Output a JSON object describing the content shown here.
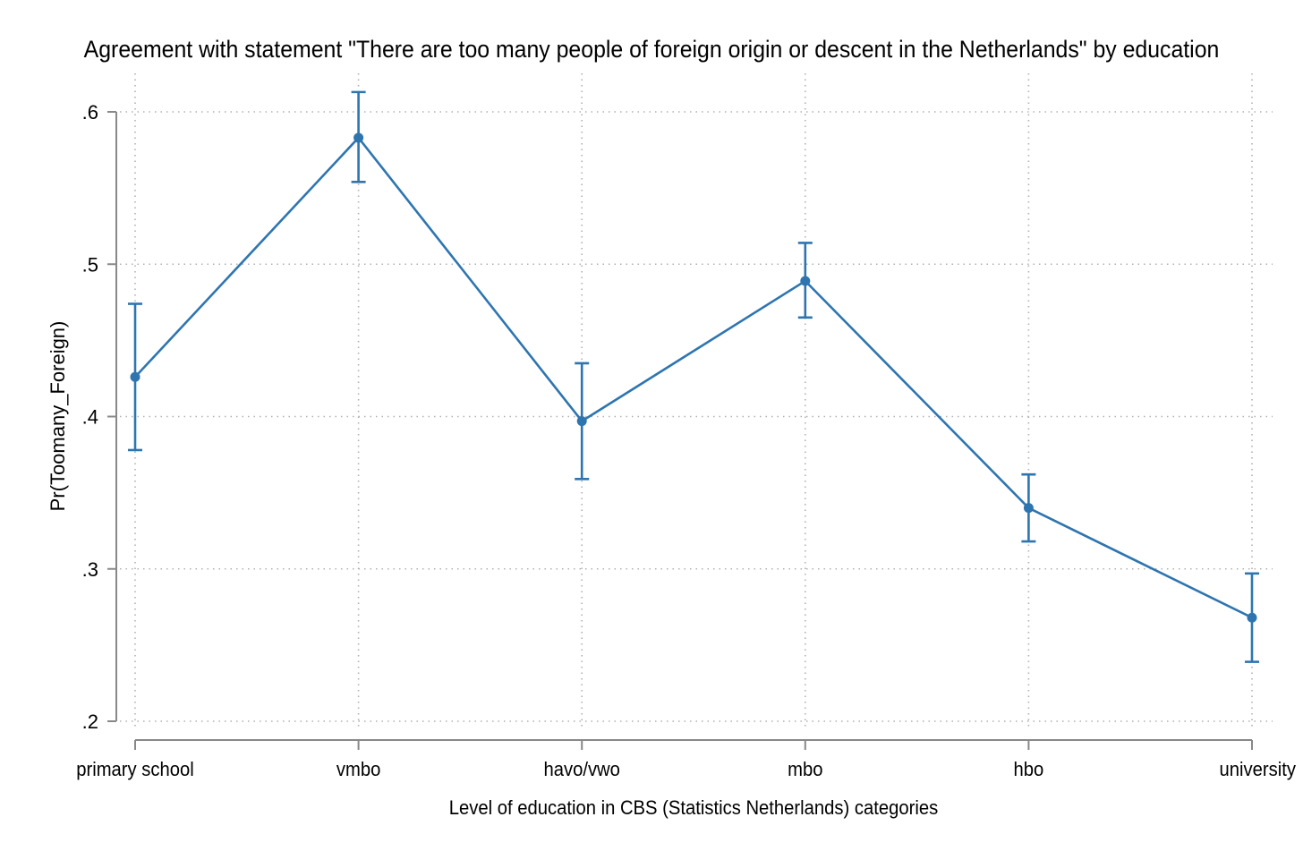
{
  "chart_data": {
    "type": "line",
    "title": "Agreement with statement \"There are too many people of foreign origin or descent in the Netherlands\" by education",
    "xlabel": "Level of education in CBS (Statistics Netherlands) categories",
    "ylabel": "Pr(Toomany_Foreign)",
    "categories": [
      "primary school",
      "vmbo",
      "havo/vwo",
      "mbo",
      "hbo",
      "university"
    ],
    "series": [
      {
        "values": [
          0.426,
          0.583,
          0.397,
          0.489,
          0.34,
          0.268
        ],
        "ci_lower": [
          0.378,
          0.554,
          0.359,
          0.465,
          0.318,
          0.239
        ],
        "ci_upper": [
          0.474,
          0.613,
          0.435,
          0.514,
          0.362,
          0.297
        ]
      }
    ],
    "yticks": [
      ".2",
      ".3",
      ".4",
      ".5",
      ".6"
    ],
    "ytick_values": [
      0.2,
      0.3,
      0.4,
      0.5,
      0.6
    ],
    "ylim": [
      0.2,
      0.6
    ],
    "grid": true,
    "colors": {
      "series": "#2e75b0",
      "axis": "#888888",
      "grid": "#b0b0b0"
    }
  }
}
